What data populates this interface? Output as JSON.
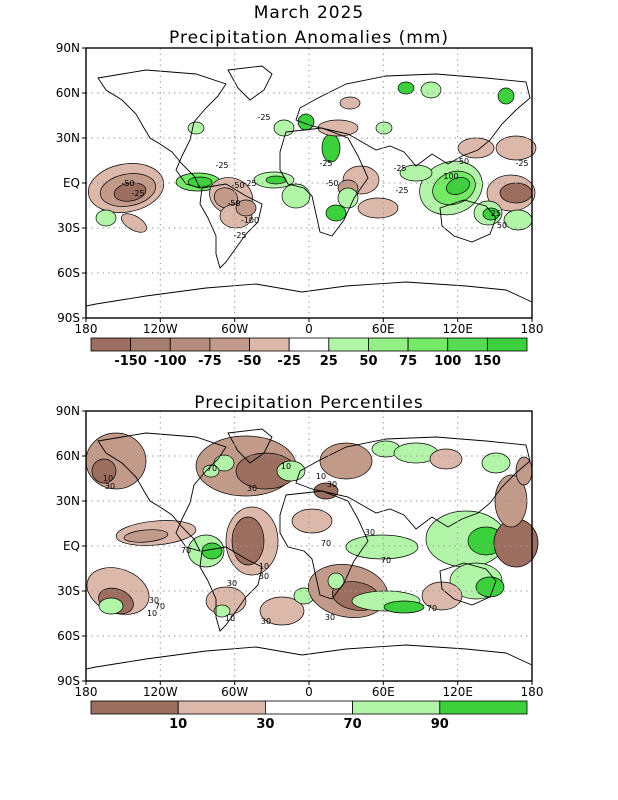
{
  "page_title": "March 2025",
  "colors": {
    "brown_dark": "#9c6e5f",
    "brown_mid": "#c29a8a",
    "brown_light": "#dcb8ab",
    "green_light": "#b2f5a9",
    "green_mid": "#74ea67",
    "green_dark": "#3cd03c",
    "grid": "#9a9a9a"
  },
  "lat_labels": [
    "90N",
    "60N",
    "30N",
    "EQ",
    "30S",
    "60S",
    "90S"
  ],
  "lon_labels": [
    "180",
    "120W",
    "60W",
    "0",
    "60E",
    "120E",
    "180"
  ],
  "anomaly_map": {
    "title": "Precipitation Anomalies (mm)",
    "colorbar": {
      "labels": [
        "-150",
        "-100",
        "-75",
        "-50",
        "-25",
        "25",
        "50",
        "75",
        "100",
        "150"
      ],
      "colors": [
        "#9c6e5f",
        "#a67e6e",
        "#b38c7c",
        "#c29a8a",
        "#dcb8ab",
        "#ffffff",
        "#b2f5a9",
        "#93ef86",
        "#74ea67",
        "#55dc52",
        "#3cd03c"
      ]
    },
    "contour_labels": [
      "-25",
      "-50",
      "-25",
      "-25",
      "-50",
      "-25",
      "-50",
      "-100",
      "-25",
      "-25",
      "-50",
      "-25",
      "-25",
      "50",
      "100",
      "25",
      "50",
      "-25"
    ]
  },
  "percentile_map": {
    "title": "Precipitation Percentiles",
    "colorbar": {
      "labels": [
        "10",
        "30",
        "70",
        "90"
      ],
      "colors": [
        "#9c6e5f",
        "#dcb8ab",
        "#ffffff",
        "#b2f5a9",
        "#3cd03c"
      ]
    },
    "contour_labels": [
      "10",
      "30",
      "70",
      "10",
      "30",
      "10",
      "30",
      "70",
      "10",
      "30",
      "30",
      "70",
      "30",
      "70",
      "10",
      "30",
      "70",
      "30",
      "10",
      "30",
      "70"
    ]
  }
}
